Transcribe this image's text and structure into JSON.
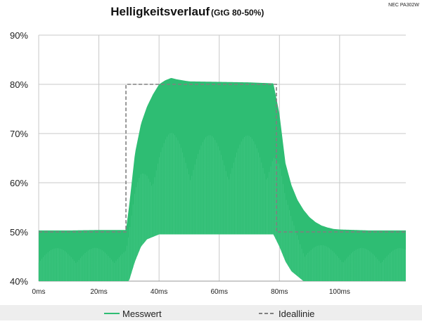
{
  "page": {
    "title": "Helligkeitsverlauf",
    "subtitle": "(GtG 80-50%)",
    "model": "NEC PA302W"
  },
  "colors": {
    "measured": "#2ebd73",
    "measured_light": "#54d091",
    "ideal": "#808080",
    "grid": "#c8c8c8",
    "legend_bg": "#eeeeee"
  },
  "chart_data": {
    "type": "area",
    "title": "Helligkeitsverlauf",
    "subtitle": "(GtG 80-50%)",
    "xlabel": "",
    "ylabel": "",
    "xlim": [
      0,
      122
    ],
    "ylim": [
      40,
      90
    ],
    "x_ticks": [
      0,
      20,
      40,
      60,
      80,
      100
    ],
    "x_tick_labels": [
      "0ms",
      "20ms",
      "40ms",
      "60ms",
      "80ms",
      "100ms"
    ],
    "y_ticks": [
      40,
      50,
      60,
      70,
      80,
      90
    ],
    "y_tick_labels": [
      "40%",
      "50%",
      "60%",
      "70%",
      "80%",
      "90%"
    ],
    "grid": true,
    "legend_position": "bottom",
    "series": [
      {
        "name": "Messwert",
        "style": "dense-oscillating-area",
        "x": [
          0,
          10,
          20,
          29,
          30,
          32,
          34,
          36,
          38,
          40,
          42,
          44,
          46,
          48,
          50,
          60,
          70,
          78,
          80,
          82,
          84,
          86,
          88,
          90,
          92,
          94,
          96,
          98,
          100,
          105,
          110,
          115,
          122
        ],
        "y": [
          50.3,
          50.3,
          50.4,
          50.4,
          55,
          66,
          72,
          75.5,
          78,
          80,
          80.8,
          81.3,
          81,
          80.8,
          80.6,
          80.5,
          80.4,
          80.2,
          74,
          64,
          59.5,
          56.5,
          54.5,
          53,
          52,
          51.3,
          50.9,
          50.6,
          50.5,
          50.4,
          50.3,
          50.3,
          50.3
        ],
        "baseline": [
          40,
          40,
          40,
          40,
          40,
          44,
          47,
          48.5,
          49,
          49.5,
          49.5,
          49.5,
          49.5,
          49.5,
          49.5,
          49.5,
          49.5,
          49.5,
          47,
          44,
          42,
          41,
          40,
          40,
          40,
          40,
          40,
          40,
          40,
          40,
          40,
          40,
          40
        ]
      },
      {
        "name": "Ideallinie",
        "style": "dashed-step",
        "x": [
          0,
          29,
          29,
          79,
          79,
          122
        ],
        "y": [
          50,
          50,
          80,
          80,
          50,
          50
        ]
      }
    ]
  },
  "legend": {
    "items": [
      {
        "label": "Messwert",
        "swatch": "solid"
      },
      {
        "label": "Ideallinie",
        "swatch": "dashed"
      }
    ]
  }
}
